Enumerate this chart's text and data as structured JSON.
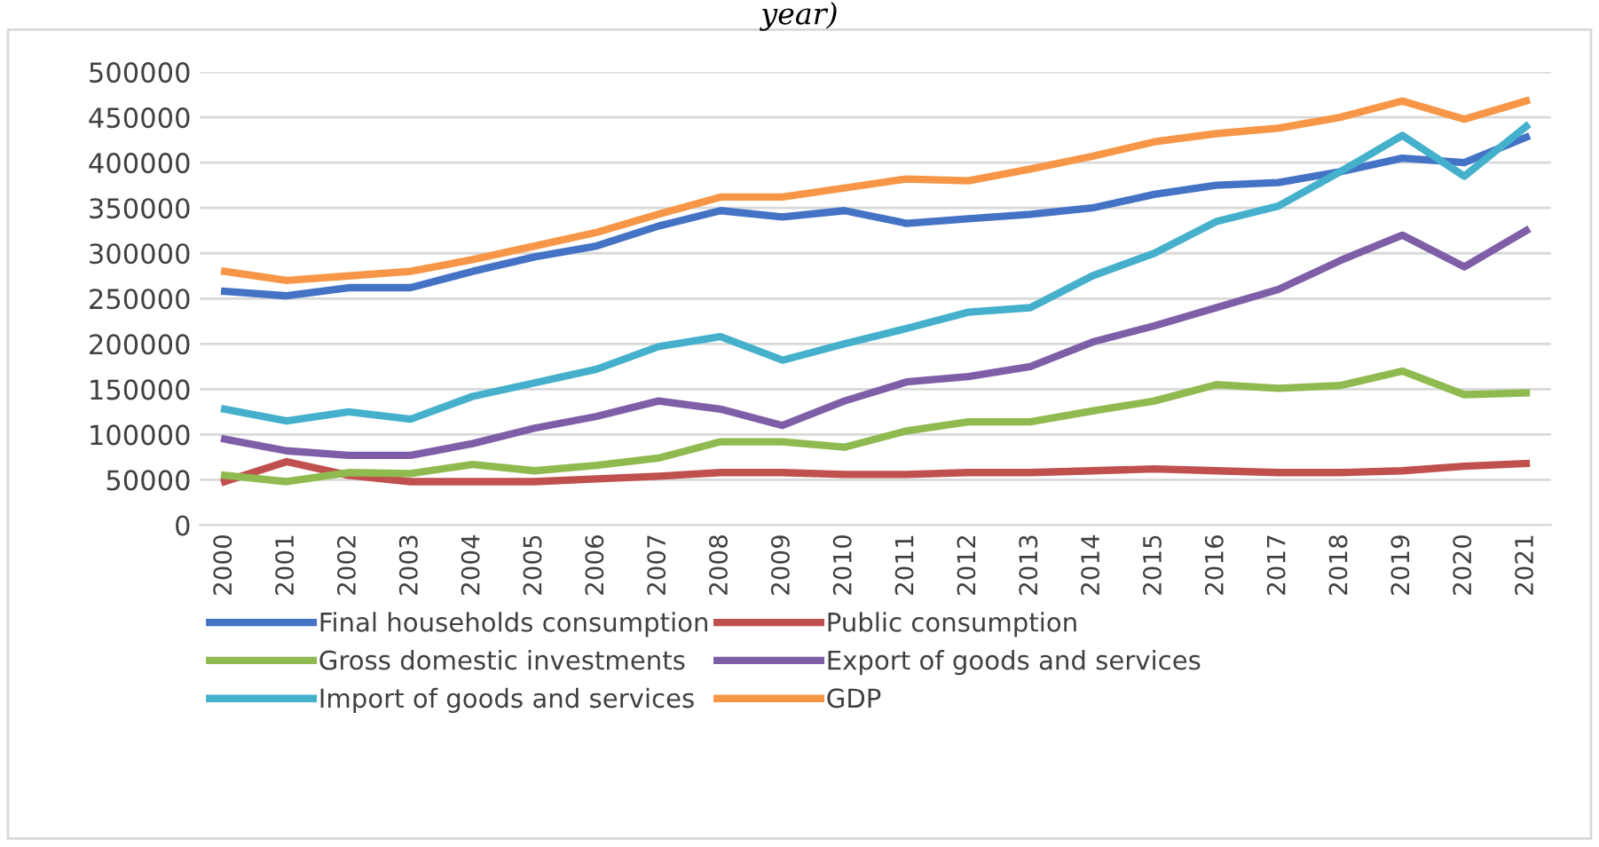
{
  "chart_data": {
    "type": "line",
    "title": "year)",
    "categories": [
      "2000",
      "2001",
      "2002",
      "2003",
      "2004",
      "2005",
      "2006",
      "2007",
      "2008",
      "2009",
      "2010",
      "2011",
      "2012",
      "2013",
      "2014",
      "2015",
      "2016",
      "2017",
      "2018",
      "2019",
      "2020",
      "2021"
    ],
    "series": [
      {
        "name": "Final households consumption",
        "color": "#4472c4",
        "values": [
          258000,
          253000,
          262000,
          262000,
          280000,
          296000,
          308000,
          330000,
          347000,
          340000,
          347000,
          333000,
          338000,
          343000,
          350000,
          365000,
          375000,
          378000,
          390000,
          405000,
          400000,
          428000
        ]
      },
      {
        "name": "Public consumption",
        "color": "#c0504d",
        "values": [
          48000,
          70000,
          55000,
          48000,
          48000,
          48000,
          51000,
          54000,
          58000,
          58000,
          56000,
          56000,
          58000,
          58000,
          60000,
          62000,
          60000,
          58000,
          58000,
          60000,
          65000,
          68000
        ]
      },
      {
        "name": "Gross domestic investments",
        "color": "#8fba4f",
        "values": [
          55000,
          48000,
          58000,
          57000,
          67000,
          60000,
          66000,
          74000,
          92000,
          92000,
          86000,
          104000,
          114000,
          114000,
          126000,
          137000,
          155000,
          151000,
          154000,
          170000,
          144000,
          146000
        ]
      },
      {
        "name": "Export of goods and services",
        "color": "#7f5ea8",
        "values": [
          95000,
          82000,
          77000,
          77000,
          90000,
          107000,
          120000,
          137000,
          128000,
          110000,
          137000,
          158000,
          164000,
          175000,
          202000,
          220000,
          240000,
          260000,
          292000,
          320000,
          285000,
          325000
        ]
      },
      {
        "name": "Import of goods and services",
        "color": "#44b0cc",
        "values": [
          128000,
          115000,
          125000,
          117000,
          142000,
          157000,
          172000,
          197000,
          208000,
          182000,
          200000,
          217000,
          235000,
          240000,
          275000,
          300000,
          335000,
          352000,
          390000,
          430000,
          385000,
          440000
        ]
      },
      {
        "name": "GDP",
        "color": "#f79646",
        "values": [
          280000,
          270000,
          275000,
          280000,
          293000,
          308000,
          323000,
          343000,
          362000,
          362000,
          372000,
          382000,
          380000,
          393000,
          407000,
          423000,
          432000,
          438000,
          450000,
          468000,
          448000,
          468000
        ]
      }
    ],
    "ylim": [
      0,
      500000
    ],
    "yticks": [
      0,
      50000,
      100000,
      150000,
      200000,
      250000,
      300000,
      350000,
      400000,
      450000,
      500000
    ],
    "grid": "y",
    "legend": "bottom",
    "marker": "none",
    "line_style": "solid"
  }
}
